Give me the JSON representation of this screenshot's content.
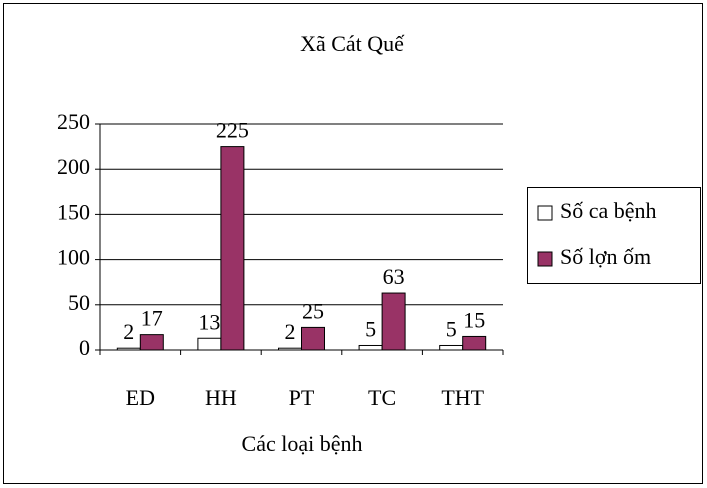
{
  "chart_data": {
    "type": "bar",
    "title": "Xã Cát Quế",
    "x_label": "Các loại bệnh",
    "categories": [
      "ED",
      "HH",
      "PT",
      "TC",
      "THT"
    ],
    "series": [
      {
        "name": "Số ca bệnh",
        "color": "#ffffff",
        "values": [
          2,
          13,
          2,
          5,
          5
        ]
      },
      {
        "name": "Số lợn ốm",
        "color": "#993366",
        "values": [
          17,
          225,
          25,
          63,
          15
        ]
      }
    ],
    "ylim": [
      0,
      250
    ],
    "yticks": [
      0,
      50,
      100,
      150,
      200,
      250
    ],
    "grid": true,
    "legend": "right"
  }
}
